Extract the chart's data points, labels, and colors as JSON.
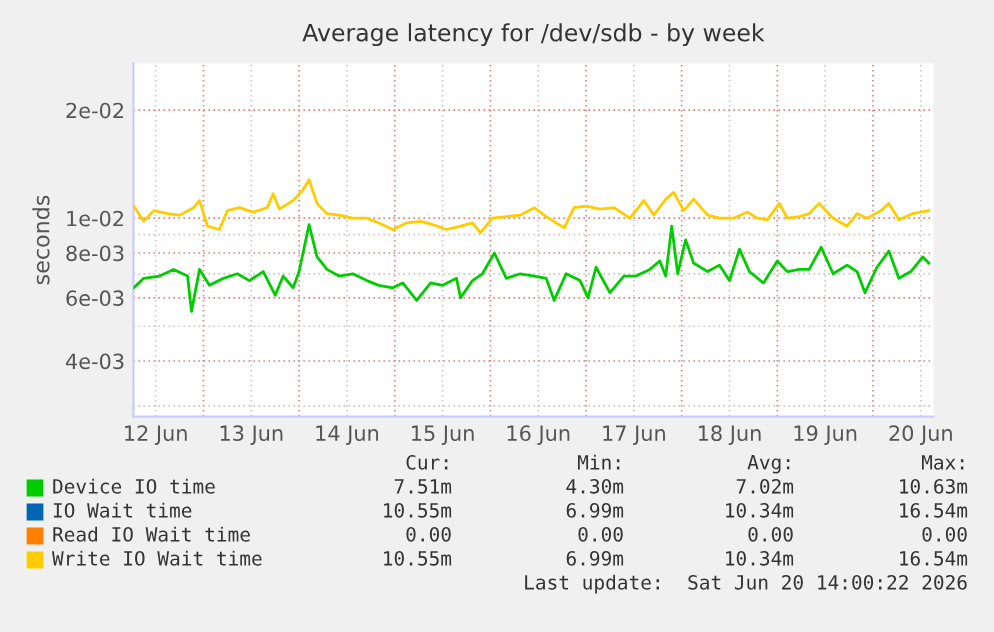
{
  "chart_data": {
    "type": "line",
    "title": "Average latency for /dev/sdb - by week",
    "ylabel": "seconds",
    "log": true,
    "grid": true,
    "legend": "bottom",
    "marker": "none",
    "line_style": "solid",
    "xlim": [
      "2026-06-12T06:25",
      "2026-06-20T15:10"
    ],
    "xticks": [
      {
        "value": "2026-06-12T12:00",
        "label": "12 Jun"
      },
      {
        "value": "2026-06-13T00:00",
        "label": null
      },
      {
        "value": "2026-06-13T12:00",
        "label": "13 Jun"
      },
      {
        "value": "2026-06-14T00:00",
        "label": null
      },
      {
        "value": "2026-06-14T12:00",
        "label": "14 Jun"
      },
      {
        "value": "2026-06-15T00:00",
        "label": null
      },
      {
        "value": "2026-06-15T12:00",
        "label": "15 Jun"
      },
      {
        "value": "2026-06-16T00:00",
        "label": null
      },
      {
        "value": "2026-06-16T12:00",
        "label": "16 Jun"
      },
      {
        "value": "2026-06-17T00:00",
        "label": null
      },
      {
        "value": "2026-06-17T12:00",
        "label": "17 Jun"
      },
      {
        "value": "2026-06-18T00:00",
        "label": null
      },
      {
        "value": "2026-06-18T12:00",
        "label": "18 Jun"
      },
      {
        "value": "2026-06-19T00:00",
        "label": null
      },
      {
        "value": "2026-06-19T12:00",
        "label": "19 Jun"
      },
      {
        "value": "2026-06-20T00:00",
        "label": null
      },
      {
        "value": "2026-06-20T12:00",
        "label": "20 Jun"
      }
    ],
    "ylim": [
      0.0028,
      0.027
    ],
    "yticks": [
      {
        "value": 0.003,
        "label": null
      },
      {
        "value": 0.004,
        "label": "4e-03"
      },
      {
        "value": 0.005,
        "label": null
      },
      {
        "value": 0.006,
        "label": "6e-03"
      },
      {
        "value": 0.007,
        "label": null
      },
      {
        "value": 0.008,
        "label": "8e-03"
      },
      {
        "value": 0.009,
        "label": null
      },
      {
        "value": 0.01,
        "label": "1e-02"
      },
      {
        "value": 0.02,
        "label": "2e-02"
      }
    ],
    "series": [
      {
        "name": "Device IO time",
        "color": "#00cc00",
        "x": [
          "2026-06-12T06:30",
          "2026-06-12T09:00",
          "2026-06-12T13:00",
          "2026-06-12T16:30",
          "2026-06-12T20:00",
          "2026-06-12T21:00",
          "2026-06-12T23:00",
          "2026-06-13T01:30",
          "2026-06-13T05:00",
          "2026-06-13T08:30",
          "2026-06-13T11:30",
          "2026-06-13T15:00",
          "2026-06-13T18:00",
          "2026-06-13T20:00",
          "2026-06-13T22:30",
          "2026-06-14T00:00",
          "2026-06-14T02:30",
          "2026-06-14T04:30",
          "2026-06-14T07:00",
          "2026-06-14T10:00",
          "2026-06-14T13:30",
          "2026-06-14T17:00",
          "2026-06-14T20:00",
          "2026-06-14T23:30",
          "2026-06-15T02:00",
          "2026-06-15T05:30",
          "2026-06-15T09:00",
          "2026-06-15T12:00",
          "2026-06-15T15:30",
          "2026-06-15T16:30",
          "2026-06-15T19:30",
          "2026-06-15T22:00",
          "2026-06-16T01:00",
          "2026-06-16T04:00",
          "2026-06-16T07:30",
          "2026-06-16T11:00",
          "2026-06-16T14:00",
          "2026-06-16T16:00",
          "2026-06-16T19:00",
          "2026-06-16T22:30",
          "2026-06-17T00:30",
          "2026-06-17T02:30",
          "2026-06-17T06:00",
          "2026-06-17T09:30",
          "2026-06-17T12:30",
          "2026-06-17T16:00",
          "2026-06-17T18:30",
          "2026-06-17T20:00",
          "2026-06-17T21:30",
          "2026-06-17T23:00",
          "2026-06-18T01:00",
          "2026-06-18T03:00",
          "2026-06-18T06:30",
          "2026-06-18T09:30",
          "2026-06-18T12:00",
          "2026-06-18T14:30",
          "2026-06-18T17:00",
          "2026-06-18T20:30",
          "2026-06-19T00:00",
          "2026-06-19T02:30",
          "2026-06-19T05:30",
          "2026-06-19T08:00",
          "2026-06-19T11:00",
          "2026-06-19T14:00",
          "2026-06-19T17:30",
          "2026-06-19T20:00",
          "2026-06-19T22:00",
          "2026-06-20T01:00",
          "2026-06-20T04:00",
          "2026-06-20T06:30",
          "2026-06-20T09:30",
          "2026-06-20T12:30",
          "2026-06-20T14:00"
        ],
        "values": [
          0.0064,
          0.0068,
          0.0069,
          0.0072,
          0.0069,
          0.0055,
          0.0072,
          0.0065,
          0.0068,
          0.007,
          0.0067,
          0.0071,
          0.0061,
          0.0069,
          0.0064,
          0.0071,
          0.0096,
          0.0078,
          0.0072,
          0.0069,
          0.007,
          0.0067,
          0.0065,
          0.0064,
          0.0066,
          0.0059,
          0.0066,
          0.0065,
          0.0068,
          0.006,
          0.0067,
          0.007,
          0.008,
          0.0068,
          0.007,
          0.0069,
          0.0068,
          0.0059,
          0.007,
          0.0067,
          0.006,
          0.0073,
          0.0062,
          0.0069,
          0.0069,
          0.0072,
          0.0076,
          0.0069,
          0.0095,
          0.007,
          0.0087,
          0.0075,
          0.0071,
          0.0074,
          0.0067,
          0.0082,
          0.0071,
          0.0066,
          0.0076,
          0.0071,
          0.0072,
          0.0072,
          0.0083,
          0.007,
          0.0074,
          0.0071,
          0.0062,
          0.0073,
          0.0081,
          0.0068,
          0.0071,
          0.0078,
          0.0075
        ]
      },
      {
        "name": "IO Wait time",
        "color": "#0066b3"
      },
      {
        "name": "Read IO Wait time",
        "color": "#ff8000"
      },
      {
        "name": "Write IO Wait time",
        "color": "#ffcc00",
        "x": [
          "2026-06-12T06:30",
          "2026-06-12T09:00",
          "2026-06-12T11:30",
          "2026-06-12T15:00",
          "2026-06-12T18:00",
          "2026-06-12T21:30",
          "2026-06-12T23:00",
          "2026-06-13T01:00",
          "2026-06-13T04:00",
          "2026-06-13T06:00",
          "2026-06-13T09:00",
          "2026-06-13T12:30",
          "2026-06-13T16:00",
          "2026-06-13T17:30",
          "2026-06-13T19:00",
          "2026-06-13T22:30",
          "2026-06-14T01:00",
          "2026-06-14T02:30",
          "2026-06-14T04:30",
          "2026-06-14T07:00",
          "2026-06-14T10:00",
          "2026-06-14T13:30",
          "2026-06-14T17:00",
          "2026-06-14T20:00",
          "2026-06-14T23:30",
          "2026-06-15T03:00",
          "2026-06-15T06:30",
          "2026-06-15T09:30",
          "2026-06-15T13:00",
          "2026-06-15T16:30",
          "2026-06-15T19:30",
          "2026-06-15T21:30",
          "2026-06-16T00:30",
          "2026-06-16T04:00",
          "2026-06-16T07:30",
          "2026-06-16T11:00",
          "2026-06-16T14:00",
          "2026-06-16T18:30",
          "2026-06-16T21:00",
          "2026-06-17T00:00",
          "2026-06-17T03:30",
          "2026-06-17T07:00",
          "2026-06-17T11:00",
          "2026-06-17T14:30",
          "2026-06-17T17:00",
          "2026-06-17T20:00",
          "2026-06-17T22:00",
          "2026-06-18T00:30",
          "2026-06-18T03:00",
          "2026-06-18T06:30",
          "2026-06-18T09:30",
          "2026-06-18T13:00",
          "2026-06-18T16:30",
          "2026-06-18T19:00",
          "2026-06-18T21:30",
          "2026-06-19T00:30",
          "2026-06-19T02:30",
          "2026-06-19T05:30",
          "2026-06-19T08:00",
          "2026-06-19T10:30",
          "2026-06-19T14:00",
          "2026-06-19T17:30",
          "2026-06-19T20:00",
          "2026-06-19T22:30",
          "2026-06-20T02:00",
          "2026-06-20T04:00",
          "2026-06-20T06:30",
          "2026-06-20T10:00",
          "2026-06-20T14:00"
        ],
        "values": [
          0.0108,
          0.0098,
          0.0105,
          0.0103,
          0.0102,
          0.0107,
          0.0112,
          0.0095,
          0.0093,
          0.0105,
          0.0107,
          0.0104,
          0.0107,
          0.0117,
          0.0106,
          0.0112,
          0.012,
          0.0128,
          0.011,
          0.0103,
          0.0102,
          0.01,
          0.01,
          0.0097,
          0.0093,
          0.0097,
          0.0098,
          0.0096,
          0.0093,
          0.0095,
          0.0097,
          0.0091,
          0.01,
          0.0101,
          0.0102,
          0.0107,
          0.0101,
          0.0094,
          0.0107,
          0.0108,
          0.0106,
          0.0107,
          0.01,
          0.0112,
          0.0102,
          0.0113,
          0.0118,
          0.0105,
          0.0113,
          0.0102,
          0.01,
          0.01,
          0.0104,
          0.01,
          0.0099,
          0.011,
          0.01,
          0.0101,
          0.0103,
          0.011,
          0.01,
          0.0095,
          0.0103,
          0.01,
          0.0105,
          0.011,
          0.0099,
          0.0103,
          0.0105
        ]
      }
    ],
    "annotations": [
      "Cur:",
      "Min:",
      "Avg:",
      "Max:",
      "7.51m",
      "4.30m",
      "7.02m",
      "10.63m",
      "10.55m",
      "6.99m",
      "10.34m",
      "16.54m",
      "0.00",
      "0.00",
      "0.00",
      "0.00",
      "10.55m",
      "6.99m",
      "10.34m",
      "16.54m",
      "Last update:  Sat Jun 20 14:00:22 2026"
    ]
  }
}
